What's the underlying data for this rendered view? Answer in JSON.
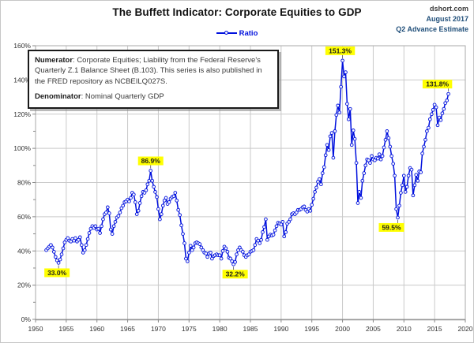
{
  "header": {
    "title": "The Buffett Indicator: Corporate Equities to GDP",
    "credit_line1": "dshort.com",
    "credit_line2": "August 2017",
    "credit_line3": "Q2 Advance Estimate"
  },
  "legend": {
    "label": "Ratio"
  },
  "info_box": {
    "numerator_label": "Numerator",
    "numerator_text": ": Corporate Equities; Liability from the Federal Reserve's Quarterly Z.1 Balance Sheet (B.103). This series is also published in the FRED repository as NCBEILQ027S.",
    "denominator_label": "Denominator",
    "denominator_text": ": Nominal Quarterly GDP"
  },
  "colors": {
    "series": "#0010dd",
    "marker_fill": "#f4f6ff",
    "annotation_bg": "#ffff00",
    "annotation_text": "#1a1a1a",
    "grid": "#c9c9c9",
    "axis": "#a8a8a8",
    "tick_text": "#333333"
  },
  "chart_data": {
    "type": "line",
    "title": "The Buffett Indicator: Corporate Equities to GDP",
    "series_name": "Ratio",
    "grid": true,
    "legend_position": "top-center",
    "x_range": [
      1950,
      2020
    ],
    "y_range": [
      0,
      160
    ],
    "x_ticks": [
      "1950",
      "1955",
      "1960",
      "1965",
      "1970",
      "1975",
      "1980",
      "1985",
      "1990",
      "1995",
      "2000",
      "2005",
      "2010",
      "2015",
      "2020"
    ],
    "y_ticks": [
      "0%",
      "20%",
      "40%",
      "60%",
      "80%",
      "100%",
      "120%",
      "140%",
      "160%"
    ],
    "y_minor_step": 10,
    "x_start": 1951.75,
    "x_step": 0.25,
    "values": [
      40.5,
      41.5,
      42.5,
      43.5,
      42.0,
      39.5,
      36.5,
      34.5,
      33.0,
      35.0,
      38.0,
      41.5,
      45.0,
      46.5,
      47.5,
      46.0,
      45.5,
      47.0,
      46.0,
      47.5,
      45.5,
      46.5,
      48.0,
      43.5,
      39.0,
      40.5,
      43.5,
      47.0,
      50.5,
      53.0,
      54.5,
      53.5,
      54.5,
      52.5,
      53.0,
      50.5,
      54.5,
      58.5,
      61.5,
      62.5,
      65.5,
      62.0,
      52.5,
      50.0,
      54.5,
      57.0,
      59.5,
      60.5,
      62.5,
      65.0,
      66.5,
      68.5,
      69.0,
      70.0,
      69.0,
      71.0,
      74.0,
      73.0,
      68.5,
      61.5,
      63.5,
      68.0,
      72.0,
      74.5,
      74.0,
      75.5,
      79.0,
      81.0,
      86.9,
      81.0,
      77.5,
      74.5,
      71.5,
      64.5,
      58.5,
      61.5,
      66.5,
      69.5,
      71.0,
      67.5,
      68.5,
      70.5,
      71.5,
      72.0,
      74.0,
      69.5,
      64.0,
      61.0,
      55.0,
      50.0,
      44.5,
      35.5,
      34.0,
      39.0,
      43.0,
      40.5,
      42.0,
      44.5,
      45.0,
      44.5,
      44.0,
      42.0,
      40.5,
      39.0,
      38.5,
      36.5,
      38.5,
      39.0,
      35.5,
      37.0,
      37.5,
      38.0,
      37.5,
      37.5,
      35.5,
      40.0,
      42.5,
      41.5,
      39.5,
      36.0,
      35.5,
      34.0,
      32.2,
      33.5,
      38.0,
      40.5,
      42.0,
      40.5,
      39.5,
      37.5,
      36.5,
      37.5,
      38.0,
      39.5,
      40.0,
      40.5,
      43.5,
      47.0,
      46.0,
      44.5,
      46.5,
      51.0,
      54.0,
      58.5,
      46.5,
      48.5,
      49.5,
      49.0,
      49.5,
      52.0,
      54.5,
      56.5,
      56.0,
      55.5,
      57.0,
      48.5,
      51.0,
      56.0,
      57.0,
      58.5,
      61.5,
      62.0,
      61.5,
      62.5,
      64.0,
      64.0,
      64.5,
      65.5,
      66.0,
      64.0,
      63.0,
      64.5,
      63.5,
      67.0,
      70.5,
      74.5,
      77.0,
      80.5,
      82.0,
      79.0,
      85.5,
      89.0,
      96.0,
      102.0,
      99.0,
      107.0,
      109.0,
      94.5,
      110.0,
      119.5,
      125.0,
      121.0,
      136.0,
      151.3,
      142.0,
      144.5,
      126.0,
      117.0,
      123.0,
      102.0,
      110.5,
      105.5,
      91.5,
      68.0,
      74.5,
      71.0,
      81.0,
      85.5,
      90.0,
      93.5,
      93.0,
      91.5,
      95.5,
      93.5,
      93.0,
      94.5,
      94.0,
      96.5,
      93.5,
      95.5,
      100.5,
      105.0,
      110.0,
      106.0,
      101.0,
      95.5,
      91.0,
      84.0,
      64.5,
      59.5,
      66.5,
      74.0,
      78.5,
      84.0,
      74.5,
      77.5,
      84.0,
      88.5,
      87.5,
      72.5,
      78.5,
      84.5,
      81.0,
      86.5,
      86.0,
      97.0,
      101.0,
      105.0,
      110.0,
      112.0,
      117.0,
      120.0,
      122.5,
      125.5,
      124.0,
      113.5,
      118.0,
      116.5,
      120.5,
      123.0,
      126.5,
      128.0,
      131.8
    ],
    "annotations": [
      {
        "label": "33.0%",
        "x": 1953.75,
        "y": 33.0,
        "placement": "below",
        "dx": -2
      },
      {
        "label": "86.9%",
        "x": 1968.75,
        "y": 86.9,
        "placement": "above",
        "dx": 0
      },
      {
        "label": "32.2%",
        "x": 1982.25,
        "y": 32.2,
        "placement": "below",
        "dx": 2
      },
      {
        "label": "151.3%",
        "x": 2000.0,
        "y": 151.3,
        "placement": "above",
        "dx": -3
      },
      {
        "label": "59.5%",
        "x": 2009.0,
        "y": 59.5,
        "placement": "below",
        "dx": -8
      },
      {
        "label": "131.8%",
        "x": 2017.25,
        "y": 131.8,
        "placement": "above",
        "dx": -14
      }
    ]
  }
}
